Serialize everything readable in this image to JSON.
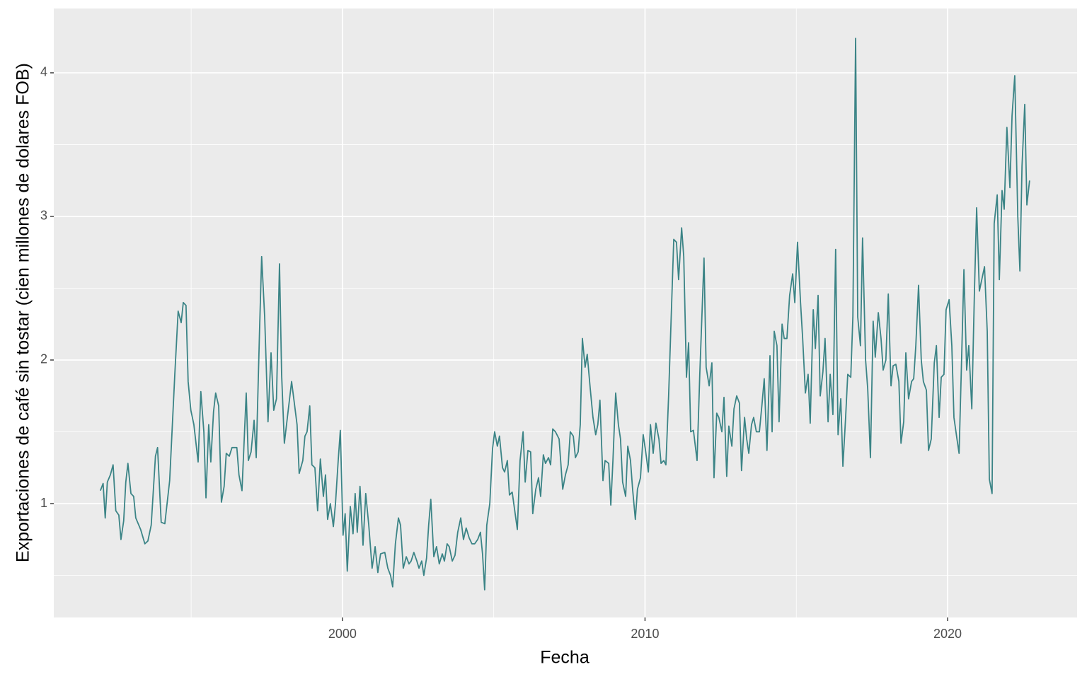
{
  "chart_data": {
    "type": "line",
    "x_label": "Fecha",
    "y_label": "Exportaciones de café sin tostar (cien millones de dolares FOB)",
    "xlim": [
      1990.46,
      2024.28
    ],
    "ylim": [
      0.207,
      4.448
    ],
    "xticks": [
      2000,
      2010,
      2020
    ],
    "yticks": [
      1,
      2,
      3,
      4
    ],
    "xticks_minor": [
      1995,
      2005,
      2015
    ],
    "yticks_minor": [
      0.5,
      1.5,
      2.5,
      3.5,
      4.5
    ],
    "grid": true,
    "x": [
      1992.0,
      1992.09,
      1992.16,
      1992.23,
      1992.33,
      1992.42,
      1992.51,
      1992.61,
      1992.68,
      1992.77,
      1992.84,
      1992.91,
      1993.01,
      1993.1,
      1993.17,
      1993.33,
      1993.47,
      1993.57,
      1993.68,
      1993.82,
      1993.89,
      1994.01,
      1994.13,
      1994.29,
      1994.46,
      1994.57,
      1994.67,
      1994.74,
      1994.83,
      1994.9,
      1994.99,
      1995.09,
      1995.23,
      1995.32,
      1995.42,
      1995.49,
      1995.58,
      1995.65,
      1995.74,
      1995.81,
      1995.91,
      1996.0,
      1996.09,
      1996.16,
      1996.26,
      1996.35,
      1996.51,
      1996.58,
      1996.68,
      1996.82,
      1996.89,
      1996.98,
      1997.08,
      1997.15,
      1997.26,
      1997.33,
      1997.43,
      1997.54,
      1997.64,
      1997.73,
      1997.82,
      1997.92,
      1997.99,
      1998.08,
      1998.18,
      1998.32,
      1998.41,
      1998.5,
      1998.57,
      1998.69,
      1998.76,
      1998.83,
      1998.92,
      1998.99,
      1999.09,
      1999.18,
      1999.27,
      1999.37,
      1999.44,
      1999.51,
      1999.6,
      1999.7,
      1999.77,
      1999.86,
      1999.93,
      2000.02,
      2000.09,
      2000.16,
      2000.26,
      2000.35,
      2000.42,
      2000.49,
      2000.58,
      2000.68,
      2000.77,
      2000.87,
      2000.98,
      2001.08,
      2001.17,
      2001.26,
      2001.4,
      2001.5,
      2001.59,
      2001.66,
      2001.75,
      2001.85,
      2001.92,
      2002.01,
      2002.11,
      2002.2,
      2002.27,
      2002.36,
      2002.46,
      2002.53,
      2002.62,
      2002.69,
      2002.78,
      2002.85,
      2002.92,
      2003.02,
      2003.11,
      2003.2,
      2003.3,
      2003.37,
      2003.46,
      2003.53,
      2003.63,
      2003.72,
      2003.81,
      2003.91,
      2004.0,
      2004.09,
      2004.19,
      2004.28,
      2004.37,
      2004.47,
      2004.56,
      2004.63,
      2004.7,
      2004.77,
      2004.87,
      2004.96,
      2005.03,
      2005.12,
      2005.19,
      2005.29,
      2005.36,
      2005.45,
      2005.52,
      2005.61,
      2005.78,
      2005.87,
      2005.97,
      2006.04,
      2006.13,
      2006.22,
      2006.29,
      2006.39,
      2006.48,
      2006.55,
      2006.64,
      2006.71,
      2006.81,
      2006.88,
      2006.95,
      2007.04,
      2007.16,
      2007.28,
      2007.37,
      2007.46,
      2007.53,
      2007.63,
      2007.7,
      2007.79,
      2007.86,
      2007.93,
      2008.02,
      2008.09,
      2008.19,
      2008.28,
      2008.37,
      2008.44,
      2008.51,
      2008.61,
      2008.68,
      2008.8,
      2008.87,
      2008.94,
      2009.03,
      2009.12,
      2009.19,
      2009.26,
      2009.36,
      2009.43,
      2009.52,
      2009.59,
      2009.68,
      2009.75,
      2009.85,
      2009.94,
      2010.01,
      2010.11,
      2010.18,
      2010.27,
      2010.36,
      2010.46,
      2010.53,
      2010.62,
      2010.69,
      2010.78,
      2010.85,
      2010.95,
      2011.04,
      2011.11,
      2011.21,
      2011.28,
      2011.37,
      2011.44,
      2011.51,
      2011.6,
      2011.72,
      2011.81,
      2011.95,
      2012.02,
      2012.12,
      2012.21,
      2012.28,
      2012.37,
      2012.44,
      2012.54,
      2012.61,
      2012.7,
      2012.77,
      2012.87,
      2012.94,
      2013.03,
      2013.12,
      2013.19,
      2013.29,
      2013.36,
      2013.43,
      2013.52,
      2013.59,
      2013.68,
      2013.78,
      2013.87,
      2013.94,
      2014.03,
      2014.13,
      2014.2,
      2014.27,
      2014.36,
      2014.43,
      2014.53,
      2014.6,
      2014.69,
      2014.78,
      2014.88,
      2014.95,
      2015.04,
      2015.14,
      2015.21,
      2015.3,
      2015.39,
      2015.46,
      2015.56,
      2015.63,
      2015.72,
      2015.79,
      2015.88,
      2015.95,
      2016.05,
      2016.12,
      2016.21,
      2016.3,
      2016.38,
      2016.47,
      2016.54,
      2016.63,
      2016.7,
      2016.8,
      2016.87,
      2016.96,
      2017.03,
      2017.12,
      2017.19,
      2017.29,
      2017.36,
      2017.45,
      2017.54,
      2017.61,
      2017.71,
      2017.8,
      2017.87,
      2017.96,
      2018.04,
      2018.13,
      2018.2,
      2018.29,
      2018.39,
      2018.46,
      2018.55,
      2018.62,
      2018.71,
      2018.81,
      2018.88,
      2018.95,
      2019.04,
      2019.13,
      2019.2,
      2019.3,
      2019.37,
      2019.46,
      2019.56,
      2019.63,
      2019.72,
      2019.79,
      2019.88,
      2019.95,
      2020.05,
      2020.14,
      2020.21,
      2020.31,
      2020.38,
      2020.45,
      2020.54,
      2020.63,
      2020.7,
      2020.8,
      2020.89,
      2020.96,
      2021.05,
      2021.12,
      2021.22,
      2021.31,
      2021.38,
      2021.47,
      2021.54,
      2021.64,
      2021.71,
      2021.8,
      2021.87,
      2021.96,
      2022.06,
      2022.13,
      2022.22,
      2022.32,
      2022.39,
      2022.46,
      2022.55,
      2022.62,
      2022.71
    ],
    "series": [
      {
        "color": "#3b8486",
        "values": [
          1.09,
          1.14,
          0.9,
          1.15,
          1.2,
          1.27,
          0.95,
          0.92,
          0.75,
          0.88,
          1.15,
          1.28,
          1.07,
          1.05,
          0.9,
          0.82,
          0.72,
          0.74,
          0.85,
          1.33,
          1.39,
          0.87,
          0.86,
          1.16,
          1.9,
          2.34,
          2.26,
          2.4,
          2.38,
          1.85,
          1.65,
          1.55,
          1.29,
          1.78,
          1.5,
          1.04,
          1.55,
          1.29,
          1.64,
          1.77,
          1.68,
          1.01,
          1.12,
          1.35,
          1.33,
          1.39,
          1.39,
          1.2,
          1.09,
          1.77,
          1.3,
          1.36,
          1.58,
          1.32,
          2.2,
          2.72,
          2.3,
          1.57,
          2.05,
          1.65,
          1.73,
          2.67,
          1.9,
          1.42,
          1.6,
          1.85,
          1.7,
          1.55,
          1.21,
          1.3,
          1.47,
          1.5,
          1.68,
          1.27,
          1.25,
          0.95,
          1.31,
          1.05,
          1.2,
          0.89,
          1.0,
          0.84,
          1.0,
          1.3,
          1.51,
          0.78,
          0.93,
          0.53,
          0.98,
          0.79,
          1.07,
          0.8,
          1.12,
          0.71,
          1.07,
          0.85,
          0.55,
          0.7,
          0.52,
          0.65,
          0.66,
          0.55,
          0.5,
          0.42,
          0.72,
          0.9,
          0.85,
          0.55,
          0.63,
          0.58,
          0.6,
          0.66,
          0.6,
          0.55,
          0.6,
          0.5,
          0.62,
          0.85,
          1.03,
          0.63,
          0.7,
          0.58,
          0.65,
          0.6,
          0.72,
          0.7,
          0.6,
          0.64,
          0.8,
          0.9,
          0.75,
          0.83,
          0.76,
          0.72,
          0.72,
          0.75,
          0.8,
          0.65,
          0.4,
          0.85,
          1.0,
          1.38,
          1.5,
          1.4,
          1.47,
          1.25,
          1.22,
          1.3,
          1.06,
          1.08,
          0.82,
          1.3,
          1.5,
          1.15,
          1.37,
          1.36,
          0.93,
          1.1,
          1.18,
          1.05,
          1.34,
          1.28,
          1.32,
          1.27,
          1.52,
          1.5,
          1.45,
          1.1,
          1.2,
          1.27,
          1.5,
          1.47,
          1.32,
          1.36,
          1.55,
          2.15,
          1.95,
          2.04,
          1.8,
          1.6,
          1.48,
          1.55,
          1.72,
          1.16,
          1.3,
          1.28,
          0.99,
          1.3,
          1.77,
          1.55,
          1.45,
          1.15,
          1.05,
          1.4,
          1.3,
          1.1,
          0.89,
          1.1,
          1.18,
          1.48,
          1.38,
          1.22,
          1.55,
          1.35,
          1.56,
          1.45,
          1.28,
          1.3,
          1.27,
          1.75,
          2.2,
          2.84,
          2.82,
          2.56,
          2.92,
          2.72,
          1.88,
          2.12,
          1.5,
          1.51,
          1.3,
          1.9,
          2.71,
          1.95,
          1.82,
          1.98,
          1.18,
          1.63,
          1.6,
          1.5,
          1.74,
          1.19,
          1.54,
          1.4,
          1.66,
          1.75,
          1.7,
          1.23,
          1.6,
          1.45,
          1.35,
          1.55,
          1.6,
          1.5,
          1.5,
          1.7,
          1.87,
          1.37,
          2.03,
          1.5,
          2.2,
          2.1,
          1.57,
          2.25,
          2.15,
          2.15,
          2.45,
          2.6,
          2.4,
          2.82,
          2.4,
          2.15,
          1.77,
          1.9,
          1.56,
          2.35,
          2.08,
          2.45,
          1.75,
          1.92,
          2.15,
          1.57,
          1.9,
          1.62,
          2.77,
          1.48,
          1.73,
          1.26,
          1.6,
          1.9,
          1.88,
          2.3,
          4.24,
          2.3,
          2.1,
          2.85,
          2.0,
          1.8,
          1.32,
          2.27,
          2.02,
          2.33,
          2.15,
          1.93,
          2.0,
          2.46,
          1.82,
          1.96,
          1.97,
          1.85,
          1.42,
          1.57,
          2.05,
          1.73,
          1.85,
          1.87,
          2.1,
          2.52,
          2.0,
          1.85,
          1.79,
          1.37,
          1.45,
          1.98,
          2.1,
          1.6,
          1.88,
          1.9,
          2.35,
          2.42,
          2.1,
          1.6,
          1.45,
          1.35,
          1.9,
          2.63,
          1.93,
          2.1,
          1.66,
          2.5,
          3.06,
          2.48,
          2.55,
          2.65,
          2.2,
          1.17,
          1.07,
          2.95,
          3.15,
          2.56,
          3.18,
          3.05,
          3.62,
          3.2,
          3.7,
          3.98,
          3.0,
          2.62,
          3.35,
          3.78,
          3.08,
          3.25
        ]
      }
    ]
  }
}
